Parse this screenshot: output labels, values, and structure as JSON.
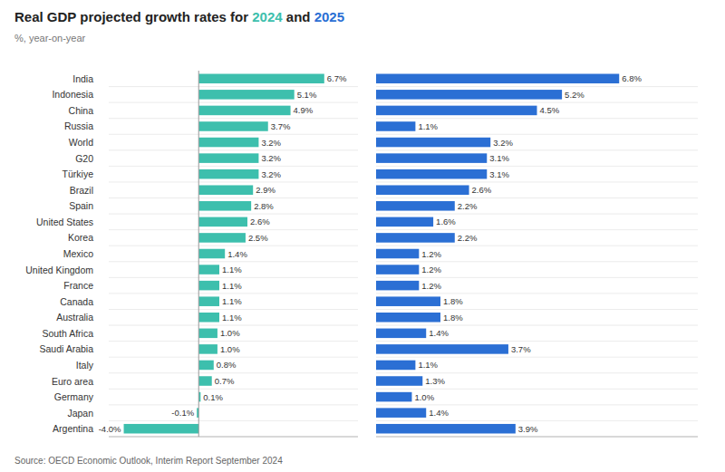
{
  "chart_data": [
    {
      "type": "bar",
      "orientation": "horizontal",
      "title": "Real GDP projected growth rates for 2024 and 2025",
      "subtitle": "%, year-on-year",
      "source": "Source: OECD Economic Outlook, Interim Report September 2024",
      "categories": [
        "India",
        "Indonesia",
        "China",
        "Russia",
        "World",
        "G20",
        "Türkiye",
        "Brazil",
        "Spain",
        "United States",
        "Korea",
        "Mexico",
        "United Kingdom",
        "France",
        "Canada",
        "Australia",
        "South Africa",
        "Saudi Arabia",
        "Italy",
        "Euro area",
        "Germany",
        "Japan",
        "Argentina"
      ],
      "series": [
        {
          "name": "2024",
          "color": "#3dbfad",
          "values": [
            6.7,
            5.1,
            4.9,
            3.7,
            3.2,
            3.2,
            3.2,
            2.9,
            2.8,
            2.6,
            2.5,
            1.4,
            1.1,
            1.1,
            1.1,
            1.1,
            1.0,
            1.0,
            0.8,
            0.7,
            0.1,
            -0.1,
            -4.0
          ],
          "value_labels": [
            "6.7%",
            "5.1%",
            "4.9%",
            "3.7%",
            "3.2%",
            "3.2%",
            "3.2%",
            "2.9%",
            "2.8%",
            "2.6%",
            "2.5%",
            "1.4%",
            "1.1%",
            "1.1%",
            "1.1%",
            "1.1%",
            "1.0%",
            "1.0%",
            "0.8%",
            "0.7%",
            "0.1%",
            "-0.1%",
            "-4.0%"
          ]
        }
      ],
      "xlim": [
        -4.8,
        8.5
      ],
      "data_labels": true,
      "tick_labels": "y"
    },
    {
      "type": "bar",
      "orientation": "horizontal",
      "categories": [
        "India",
        "Indonesia",
        "China",
        "Russia",
        "World",
        "G20",
        "Türkiye",
        "Brazil",
        "Spain",
        "United States",
        "Korea",
        "Mexico",
        "United Kingdom",
        "France",
        "Canada",
        "Australia",
        "South Africa",
        "Saudi Arabia",
        "Italy",
        "Euro area",
        "Germany",
        "Japan",
        "Argentina"
      ],
      "series": [
        {
          "name": "2025",
          "color": "#2b6fd4",
          "values": [
            6.8,
            5.2,
            4.5,
            1.1,
            3.2,
            3.1,
            3.1,
            2.6,
            2.2,
            1.6,
            2.2,
            1.2,
            1.2,
            1.2,
            1.8,
            1.8,
            1.4,
            3.7,
            1.1,
            1.3,
            1.0,
            1.4,
            3.9
          ],
          "value_labels": [
            "6.8%",
            "5.2%",
            "4.5%",
            "1.1%",
            "3.2%",
            "3.1%",
            "3.1%",
            "2.6%",
            "2.2%",
            "1.6%",
            "2.2%",
            "1.2%",
            "1.2%",
            "1.2%",
            "1.8%",
            "1.8%",
            "1.4%",
            "3.7%",
            "1.1%",
            "1.3%",
            "1.0%",
            "1.4%",
            "3.9%"
          ]
        }
      ],
      "xlim": [
        0,
        9.0
      ],
      "data_labels": true,
      "tick_labels": false
    }
  ]
}
